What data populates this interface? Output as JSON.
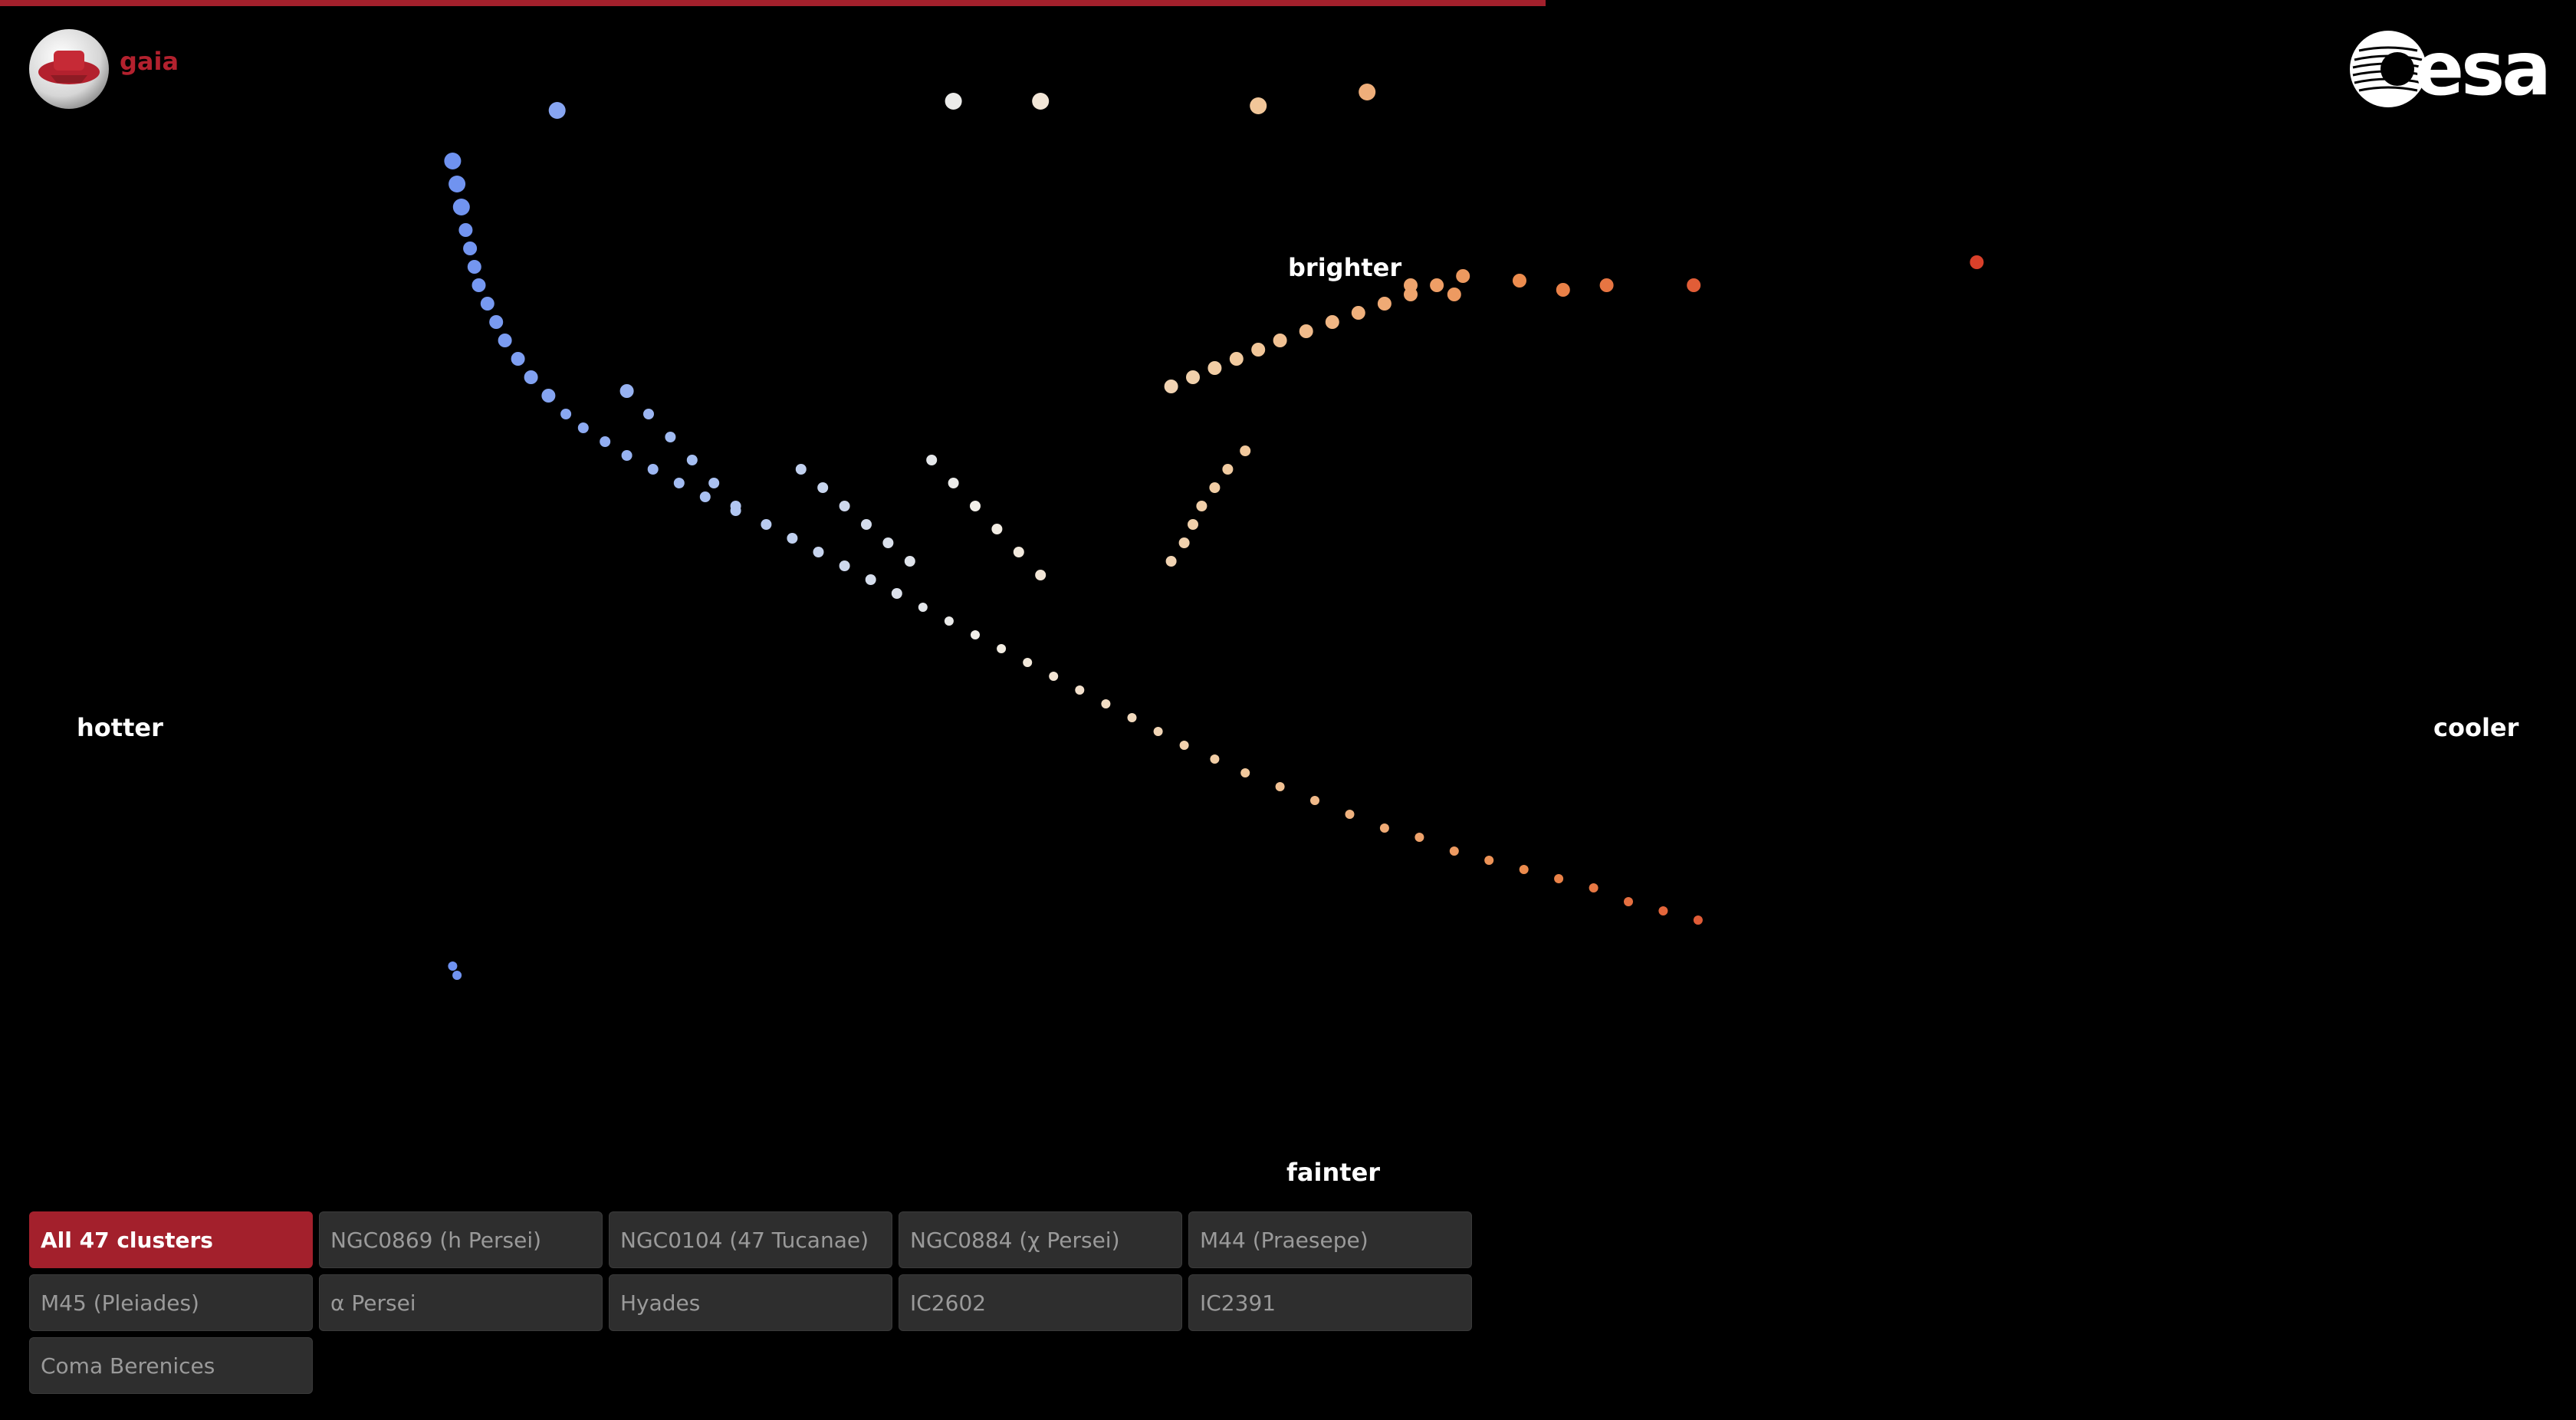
{
  "progress": 0.6,
  "brand": {
    "left_logo_text": "gaia",
    "right_logo_text": "esa",
    "accent": "#a3202c"
  },
  "labels": {
    "brighter": "brighter",
    "fainter": "fainter",
    "hotter": "hotter",
    "cooler": "cooler"
  },
  "clusters": [
    {
      "label": "All 47 clusters",
      "active": true
    },
    {
      "label": "NGC0869 (h Persei)",
      "active": false
    },
    {
      "label": "NGC0104 (47 Tucanae)",
      "active": false
    },
    {
      "label": "NGC0884 (χ Persei)",
      "active": false
    },
    {
      "label": "M44 (Praesepe)",
      "active": false
    },
    {
      "label": "M45 (Pleiades)",
      "active": false
    },
    {
      "label": "α Persei",
      "active": false
    },
    {
      "label": "Hyades",
      "active": false
    },
    {
      "label": "IC2602",
      "active": false
    },
    {
      "label": "IC2391",
      "active": false
    },
    {
      "label": "Coma Berenices",
      "active": false
    }
  ],
  "chart_data": {
    "type": "scatter",
    "title": "",
    "xlabel": "",
    "ylabel": "",
    "x_range": [
      -0.5,
      4.5
    ],
    "y_range": [
      -6,
      16
    ],
    "color_scale": [
      "#6a8ef0",
      "#a9c1f2",
      "#f2efe8",
      "#f1c79a",
      "#ec8a4c",
      "#d9402a"
    ],
    "grid": false,
    "legend": "none",
    "series": [
      {
        "name": "main-sequence",
        "points": [
          [
            -0.2,
            -4.5
          ],
          [
            -0.19,
            -4.0
          ],
          [
            -0.18,
            -3.5
          ],
          [
            -0.17,
            -3.0
          ],
          [
            -0.16,
            -2.6
          ],
          [
            -0.15,
            -2.2
          ],
          [
            -0.14,
            -1.8
          ],
          [
            -0.12,
            -1.4
          ],
          [
            -0.1,
            -1.0
          ],
          [
            -0.08,
            -0.6
          ],
          [
            -0.05,
            -0.2
          ],
          [
            -0.02,
            0.2
          ],
          [
            0.02,
            0.6
          ],
          [
            0.06,
            1.0
          ],
          [
            0.1,
            1.3
          ],
          [
            0.15,
            1.6
          ],
          [
            0.2,
            1.9
          ],
          [
            0.26,
            2.2
          ],
          [
            0.32,
            2.5
          ],
          [
            0.38,
            2.8
          ],
          [
            0.45,
            3.1
          ],
          [
            0.52,
            3.4
          ],
          [
            0.58,
            3.7
          ],
          [
            0.64,
            4.0
          ],
          [
            0.7,
            4.3
          ],
          [
            0.76,
            4.6
          ],
          [
            0.82,
            4.9
          ],
          [
            0.88,
            5.2
          ],
          [
            0.94,
            5.5
          ],
          [
            1.0,
            5.8
          ],
          [
            1.06,
            6.1
          ],
          [
            1.12,
            6.4
          ],
          [
            1.18,
            6.7
          ],
          [
            1.24,
            7.0
          ],
          [
            1.3,
            7.3
          ],
          [
            1.36,
            7.6
          ],
          [
            1.42,
            7.9
          ],
          [
            1.48,
            8.2
          ],
          [
            1.55,
            8.5
          ],
          [
            1.62,
            8.8
          ],
          [
            1.7,
            9.1
          ],
          [
            1.78,
            9.4
          ],
          [
            1.86,
            9.7
          ],
          [
            1.94,
            10.0
          ],
          [
            2.02,
            10.2
          ],
          [
            2.1,
            10.5
          ],
          [
            2.18,
            10.7
          ],
          [
            2.26,
            10.9
          ],
          [
            2.34,
            11.1
          ],
          [
            2.42,
            11.3
          ],
          [
            2.5,
            11.6
          ],
          [
            2.58,
            11.8
          ],
          [
            2.66,
            12.0
          ]
        ]
      },
      {
        "name": "red-giant-branch",
        "points": [
          [
            1.45,
            0.4
          ],
          [
            1.5,
            0.2
          ],
          [
            1.55,
            0.0
          ],
          [
            1.6,
            -0.2
          ],
          [
            1.65,
            -0.4
          ],
          [
            1.7,
            -0.6
          ],
          [
            1.76,
            -0.8
          ],
          [
            1.82,
            -1.0
          ],
          [
            1.88,
            -1.2
          ],
          [
            1.94,
            -1.4
          ],
          [
            2.0,
            -1.6
          ],
          [
            2.06,
            -1.8
          ],
          [
            2.12,
            -2.0
          ]
        ]
      },
      {
        "name": "subgiant-branch",
        "points": [
          [
            1.45,
            4.2
          ],
          [
            1.48,
            3.8
          ],
          [
            1.5,
            3.4
          ],
          [
            1.52,
            3.0
          ],
          [
            1.55,
            2.6
          ],
          [
            1.58,
            2.2
          ],
          [
            1.62,
            1.8
          ]
        ]
      },
      {
        "name": "turnoff-sequences",
        "points": [
          [
            0.6,
            2.2
          ],
          [
            0.65,
            2.6
          ],
          [
            0.7,
            3.0
          ],
          [
            0.75,
            3.4
          ],
          [
            0.8,
            3.8
          ],
          [
            0.85,
            4.2
          ],
          [
            0.9,
            2.0
          ],
          [
            0.95,
            2.5
          ],
          [
            1.0,
            3.0
          ],
          [
            1.05,
            3.5
          ],
          [
            1.1,
            4.0
          ],
          [
            1.15,
            4.5
          ],
          [
            0.2,
            0.5
          ],
          [
            0.25,
            1.0
          ],
          [
            0.3,
            1.5
          ],
          [
            0.35,
            2.0
          ],
          [
            0.4,
            2.5
          ],
          [
            0.45,
            3.0
          ]
        ]
      },
      {
        "name": "bright-giants",
        "points": [
          [
            0.04,
            -5.6
          ],
          [
            0.95,
            -5.8
          ],
          [
            1.15,
            -5.8
          ],
          [
            1.65,
            -5.7
          ],
          [
            1.9,
            -6.0
          ],
          [
            2.0,
            -1.8
          ],
          [
            2.1,
            -1.6
          ],
          [
            2.25,
            -1.9
          ],
          [
            2.35,
            -1.7
          ],
          [
            2.45,
            -1.8
          ],
          [
            2.65,
            -1.8
          ],
          [
            3.3,
            -2.3
          ]
        ]
      },
      {
        "name": "white-dwarfs",
        "points": [
          [
            -0.2,
            13.0
          ],
          [
            -0.19,
            13.2
          ]
        ]
      }
    ]
  }
}
